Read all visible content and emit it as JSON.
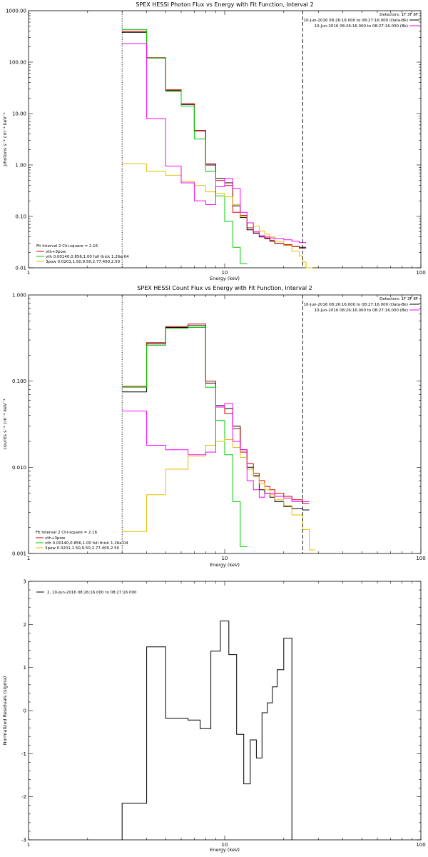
{
  "chart_data": [
    {
      "type": "line",
      "title": "SPEX HESSI Photon Flux vs Energy with Fit Function, Interval 2",
      "xlabel": "Energy (keV)",
      "ylabel": "photons s⁻¹ cm⁻² keV⁻¹",
      "xscale": "log",
      "yscale": "log",
      "xlim": [
        1,
        100
      ],
      "ylim": [
        0.01,
        1000
      ],
      "x_ticks": [
        "1",
        "10",
        "100"
      ],
      "y_ticks": [
        "0.01",
        "0.10",
        "1.00",
        "10.00",
        "100.00",
        "1000.00"
      ],
      "vlines": [
        {
          "x": 3,
          "style": "dotted"
        },
        {
          "x": 25,
          "style": "dashed"
        }
      ],
      "legend_top": {
        "header": "Detectors: 1F 3F 8F",
        "entries": [
          {
            "label": "10-Jun-2016 08:26:16.000 to 08:27:16.000 (Data-Bk)",
            "color": "#000000"
          },
          {
            "label": "10-Jun-2016 08:26:16.000 to 08:27:16.000 (Bk)",
            "color": "#ff00ff"
          }
        ]
      },
      "legend_fit": {
        "header": "Fit Interval 2   Chi-square = 2.16",
        "entries": [
          {
            "label": "vth+3pow",
            "color": "#d00000"
          },
          {
            "label": "vth 0.00140,0.856,1.00  full thick 1.26e-04",
            "color": "#00cc00"
          },
          {
            "label": "3pow 0.0201,1.50,9.50,2.77,400,2.50",
            "color": "#e0c000"
          }
        ]
      },
      "edges": [
        3.0,
        3.5,
        4.0,
        4.5,
        5.0,
        5.5,
        6.0,
        6.5,
        7.0,
        7.5,
        8.0,
        8.5,
        9.0,
        9.5,
        10.0,
        10.5,
        11.0,
        12.0,
        13.0,
        14.0,
        15.0,
        16.0,
        17.0,
        18.0,
        20.0,
        22.0,
        24.0,
        25.0,
        26.0,
        28.0
      ],
      "series": [
        {
          "name": "Data-Bk",
          "color": "#000000",
          "values": [
            380,
            380,
            120,
            120,
            28,
            28,
            15,
            15,
            4.6,
            4.6,
            1.0,
            1.0,
            0.55,
            0.55,
            0.45,
            0.45,
            0.16,
            0.095,
            0.055,
            0.047,
            0.04,
            0.037,
            0.033,
            0.03,
            0.028,
            0.026,
            0.025,
            0.025
          ]
        },
        {
          "name": "vth+3pow",
          "color": "#d00000",
          "values": [
            400,
            400,
            122,
            122,
            29,
            29,
            15.5,
            15.5,
            4.7,
            4.7,
            1.05,
            1.05,
            0.5,
            0.5,
            0.4,
            0.4,
            0.12,
            0.105,
            0.06,
            0.05,
            0.042,
            0.038,
            0.034,
            0.03,
            0.028,
            0.026,
            0.024,
            0.024
          ]
        },
        {
          "name": "vth",
          "color": "#00cc00",
          "values": [
            430,
            430,
            120,
            120,
            27,
            27,
            14,
            14,
            3.2,
            3.2,
            0.75,
            0.75,
            0.25,
            0.25,
            0.08,
            0.08,
            0.025,
            0.012
          ]
        },
        {
          "name": "3pow",
          "color": "#e0c000",
          "values": [
            1.05,
            1.05,
            0.75,
            0.75,
            0.63,
            0.63,
            0.48,
            0.48,
            0.4,
            0.4,
            0.3,
            0.3,
            0.28,
            0.28,
            0.24,
            0.24,
            0.17,
            0.1,
            0.075,
            0.065,
            0.052,
            0.045,
            0.04,
            0.033,
            0.027,
            0.021,
            0.017,
            0.013,
            0.01
          ]
        },
        {
          "name": "Bk",
          "color": "#ff00ff",
          "values": [
            230,
            230,
            8,
            8,
            0.95,
            0.95,
            0.45,
            0.45,
            0.2,
            0.2,
            0.17,
            0.17,
            0.38,
            0.38,
            0.55,
            0.55,
            0.35,
            0.12,
            0.075,
            0.05,
            0.042,
            0.04,
            0.038,
            0.037,
            0.035,
            0.033,
            0.031,
            0.031
          ]
        }
      ]
    },
    {
      "type": "line",
      "title": "SPEX HESSI Count Flux vs Energy with Fit Function, Interval 2",
      "xlabel": "Energy (keV)",
      "ylabel": "counts s⁻¹ cm⁻² keV⁻¹",
      "xscale": "log",
      "yscale": "log",
      "xlim": [
        1,
        100
      ],
      "ylim": [
        0.001,
        1.0
      ],
      "x_ticks": [
        "1",
        "10",
        "100"
      ],
      "y_ticks": [
        "0.001",
        "0.010",
        "0.100",
        "1.000"
      ],
      "vlines": [
        {
          "x": 3,
          "style": "dotted"
        },
        {
          "x": 25,
          "style": "dashed"
        }
      ],
      "legend_top": {
        "header": "Detectors: 1F 3F 8F",
        "entries": [
          {
            "label": "10-Jun-2016 08:26:16.000 to 08:27:16.000 (Data-Bk)",
            "color": "#000000"
          },
          {
            "label": "10-Jun-2016 08:26:16.000 to 08:27:16.000 (Bk)",
            "color": "#ff00ff"
          }
        ]
      },
      "legend_fit": {
        "header": "Fit Interval 2   Chi-square = 2.16",
        "entries": [
          {
            "label": "vth+3pow",
            "color": "#d00000"
          },
          {
            "label": "vth 0.00140,0.856,1.00  full thick 1.26e-04",
            "color": "#00cc00"
          },
          {
            "label": "3pow 0.0201,1.50,9.50,2.77,400,2.50",
            "color": "#e0c000"
          }
        ]
      },
      "edges": [
        3.0,
        4.0,
        5.0,
        6.5,
        8.0,
        9.0,
        10.0,
        11.0,
        12.0,
        13.0,
        14.0,
        15.0,
        16.0,
        17.0,
        18.0,
        20.0,
        22.0,
        25.0,
        27.0,
        29.0
      ],
      "series": [
        {
          "name": "Data-Bk",
          "color": "#000000",
          "values": [
            0.075,
            0.27,
            0.42,
            0.44,
            0.095,
            0.052,
            0.048,
            0.03,
            0.016,
            0.01,
            0.008,
            0.0055,
            0.005,
            0.0045,
            0.004,
            0.0035,
            0.0033,
            0.0032
          ]
        },
        {
          "name": "vth+3pow",
          "color": "#d00000",
          "values": [
            0.087,
            0.28,
            0.43,
            0.46,
            0.1,
            0.05,
            0.042,
            0.028,
            0.015,
            0.011,
            0.0085,
            0.007,
            0.006,
            0.0055,
            0.005,
            0.0046,
            0.0042,
            0.0038
          ]
        },
        {
          "name": "vth",
          "color": "#00cc00",
          "values": [
            0.085,
            0.26,
            0.41,
            0.42,
            0.085,
            0.035,
            0.014,
            0.004,
            0.0012
          ]
        },
        {
          "name": "3pow",
          "color": "#e0c000",
          "values": [
            0.0018,
            0.0048,
            0.0095,
            0.0135,
            0.018,
            0.02,
            0.021,
            0.017,
            0.013,
            0.0095,
            0.0078,
            0.0065,
            0.0055,
            0.0048,
            0.0042,
            0.0036,
            0.0028,
            0.0019,
            0.0011
          ]
        },
        {
          "name": "Bk",
          "color": "#ff00ff",
          "values": [
            0.045,
            0.018,
            0.016,
            0.014,
            0.015,
            0.05,
            0.055,
            0.02,
            0.016,
            0.007,
            0.0055,
            0.0045,
            0.005,
            0.005,
            0.0046,
            0.0044,
            0.004,
            0.004
          ]
        }
      ]
    },
    {
      "type": "line",
      "title": "",
      "xlabel": "Energy (keV)",
      "ylabel": "Normalized Residuals (sigma)",
      "xscale": "log",
      "yscale": "linear",
      "xlim": [
        1,
        100
      ],
      "ylim": [
        -3,
        3
      ],
      "x_ticks": [
        "1",
        "10",
        "100"
      ],
      "y_ticks": [
        "-3",
        "-2",
        "-1",
        "0",
        "1",
        "2",
        "3"
      ],
      "legend_entries": [
        {
          "label": "2, 10-Jun-2016 08:26:16.000 to 08:27:16.000",
          "color": "#000000"
        }
      ],
      "edges": [
        3.0,
        4.0,
        5.0,
        6.5,
        7.5,
        8.5,
        9.5,
        10.5,
        11.5,
        12.5,
        13.5,
        14.5,
        15.5,
        16.5,
        17.5,
        18.5,
        20.0,
        22.0,
        25.0
      ],
      "series": [
        {
          "name": "residuals",
          "color": "#000000",
          "values": [
            -2.15,
            1.48,
            -0.18,
            -0.22,
            -0.42,
            1.38,
            2.08,
            1.3,
            -0.55,
            -1.7,
            -0.68,
            -1.1,
            -0.05,
            0.18,
            0.55,
            0.95,
            1.68
          ]
        }
      ]
    }
  ]
}
